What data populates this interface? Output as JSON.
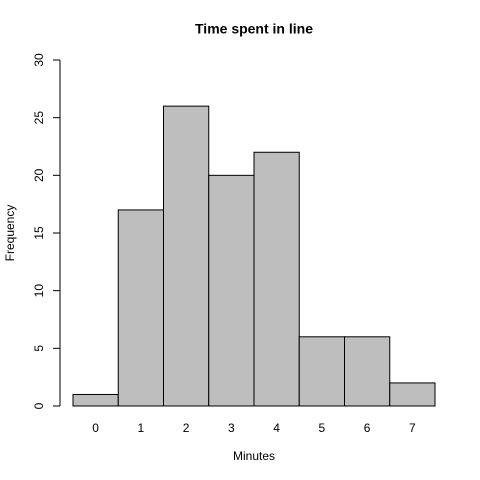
{
  "chart_data": {
    "type": "histogram",
    "title": "Time spent in line",
    "x_label": "Minutes",
    "y_label": "Frequency",
    "bins": [
      -0.5,
      0.5,
      1.5,
      2.5,
      3.5,
      4.5,
      5.5,
      6.5,
      7.5
    ],
    "values": [
      1,
      17,
      26,
      20,
      22,
      6,
      6,
      2
    ],
    "color": "#bebebe",
    "xlim": [
      -0.5,
      7.5
    ],
    "xticks": [
      0,
      1,
      2,
      3,
      4,
      5,
      6,
      7
    ],
    "ylim": [
      0,
      30
    ],
    "yticks": [
      0,
      5,
      10,
      15,
      20,
      25,
      30
    ]
  }
}
